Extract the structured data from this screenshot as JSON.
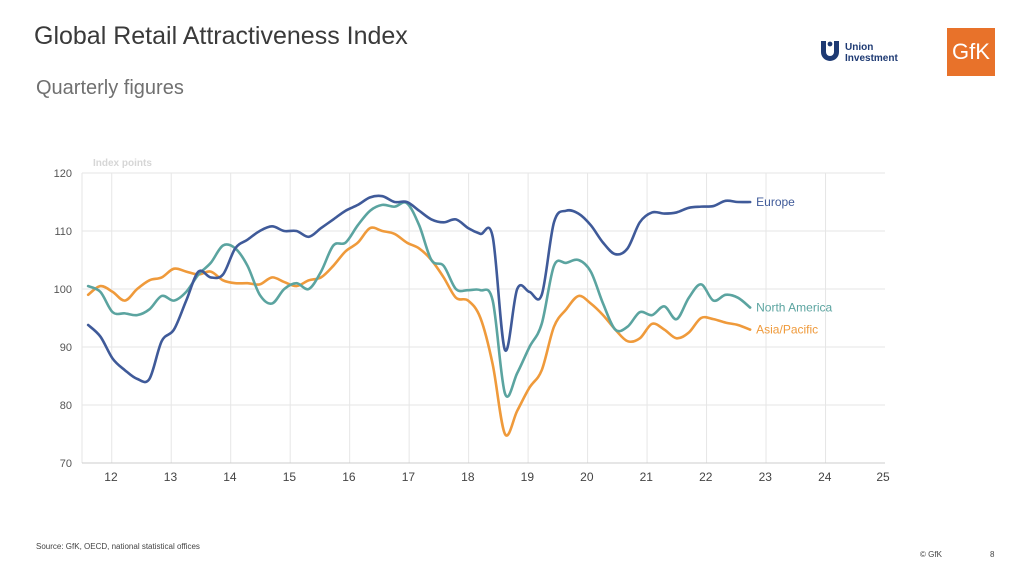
{
  "header": {
    "title": "Global Retail Attractiveness Index",
    "subtitle": "Quarterly figures"
  },
  "logos": {
    "union_investment_line1": "Union",
    "union_investment_line2": "Investment",
    "gfk": "GfK"
  },
  "footer": {
    "source": "Source: GfK, OECD, national statistical offices",
    "copyright": "© GfK",
    "page": "8"
  },
  "chart_data": {
    "type": "line",
    "title": "Global Retail Attractiveness Index",
    "subtitle": "Quarterly figures",
    "ylabel": "Index points",
    "xlabel": "",
    "ylim": [
      70,
      120
    ],
    "yticks": [
      70,
      80,
      90,
      100,
      110,
      120
    ],
    "xlim": [
      11.5,
      24.6
    ],
    "xticks": [
      "12",
      "13",
      "14",
      "15",
      "16",
      "17",
      "18",
      "19",
      "20",
      "21",
      "22",
      "23",
      "24",
      "25"
    ],
    "grid": true,
    "legend": "inline-right",
    "colors": {
      "Europe": "#3f5a99",
      "North America": "#5ba4a0",
      "Asia/Pacific": "#ef9a3b"
    },
    "series": [
      {
        "name": "Europe",
        "points": [
          [
            11.6,
            93.8
          ],
          [
            11.8,
            91.8
          ],
          [
            12.0,
            88.0
          ],
          [
            12.2,
            86.0
          ],
          [
            12.4,
            84.5
          ],
          [
            12.6,
            84.5
          ],
          [
            12.8,
            91.0
          ],
          [
            13.0,
            93.0
          ],
          [
            13.2,
            98.0
          ],
          [
            13.4,
            103.0
          ],
          [
            13.6,
            102.0
          ],
          [
            13.8,
            102.5
          ],
          [
            14.0,
            107.0
          ],
          [
            14.2,
            108.5
          ],
          [
            14.4,
            110.0
          ],
          [
            14.6,
            110.8
          ],
          [
            14.8,
            110.0
          ],
          [
            15.0,
            110.0
          ],
          [
            15.2,
            109.0
          ],
          [
            15.4,
            110.5
          ],
          [
            15.6,
            112.0
          ],
          [
            15.8,
            113.5
          ],
          [
            16.0,
            114.5
          ],
          [
            16.2,
            115.8
          ],
          [
            16.4,
            116.0
          ],
          [
            16.6,
            115.0
          ],
          [
            16.8,
            115.0
          ],
          [
            17.0,
            113.5
          ],
          [
            17.2,
            112.0
          ],
          [
            17.4,
            111.5
          ],
          [
            17.6,
            112.0
          ],
          [
            17.8,
            110.5
          ],
          [
            18.0,
            109.5
          ],
          [
            18.2,
            109.0
          ],
          [
            18.4,
            89.5
          ],
          [
            18.6,
            100.0
          ],
          [
            18.8,
            99.5
          ],
          [
            19.0,
            99.0
          ],
          [
            19.2,
            111.5
          ],
          [
            19.4,
            113.5
          ],
          [
            19.6,
            113.0
          ],
          [
            19.8,
            111.0
          ],
          [
            20.0,
            108.0
          ],
          [
            20.2,
            106.0
          ],
          [
            20.4,
            107.0
          ],
          [
            20.6,
            111.5
          ],
          [
            20.8,
            113.2
          ],
          [
            21.0,
            113.0
          ],
          [
            21.2,
            113.2
          ],
          [
            21.4,
            114.0
          ],
          [
            21.6,
            114.2
          ],
          [
            21.8,
            114.3
          ],
          [
            22.0,
            115.2
          ],
          [
            22.2,
            115.0
          ],
          [
            22.4,
            115.0
          ]
        ]
      },
      {
        "name": "North America",
        "points": [
          [
            11.6,
            100.5
          ],
          [
            11.8,
            99.5
          ],
          [
            12.0,
            96.0
          ],
          [
            12.2,
            95.8
          ],
          [
            12.4,
            95.5
          ],
          [
            12.6,
            96.5
          ],
          [
            12.8,
            98.8
          ],
          [
            13.0,
            98.0
          ],
          [
            13.2,
            99.5
          ],
          [
            13.4,
            102.5
          ],
          [
            13.6,
            104.5
          ],
          [
            13.8,
            107.5
          ],
          [
            14.0,
            107.0
          ],
          [
            14.2,
            104.0
          ],
          [
            14.4,
            99.0
          ],
          [
            14.6,
            97.5
          ],
          [
            14.8,
            100.0
          ],
          [
            15.0,
            101.0
          ],
          [
            15.2,
            100.0
          ],
          [
            15.4,
            103.0
          ],
          [
            15.6,
            107.5
          ],
          [
            15.8,
            108.0
          ],
          [
            16.0,
            111.0
          ],
          [
            16.2,
            113.5
          ],
          [
            16.4,
            114.5
          ],
          [
            16.6,
            114.2
          ],
          [
            16.8,
            114.8
          ],
          [
            17.0,
            111.0
          ],
          [
            17.2,
            105.0
          ],
          [
            17.4,
            104.0
          ],
          [
            17.6,
            100.0
          ],
          [
            17.8,
            99.8
          ],
          [
            18.0,
            99.8
          ],
          [
            18.2,
            98.0
          ],
          [
            18.4,
            82.0
          ],
          [
            18.6,
            85.5
          ],
          [
            18.8,
            90.0
          ],
          [
            19.0,
            94.0
          ],
          [
            19.2,
            104.0
          ],
          [
            19.4,
            104.5
          ],
          [
            19.6,
            105.0
          ],
          [
            19.8,
            103.0
          ],
          [
            20.0,
            97.5
          ],
          [
            20.2,
            93.0
          ],
          [
            20.4,
            93.5
          ],
          [
            20.6,
            96.0
          ],
          [
            20.8,
            95.5
          ],
          [
            21.0,
            97.0
          ],
          [
            21.2,
            94.8
          ],
          [
            21.4,
            98.5
          ],
          [
            21.6,
            100.8
          ],
          [
            21.8,
            98.0
          ],
          [
            22.0,
            99.0
          ],
          [
            22.2,
            98.5
          ],
          [
            22.4,
            96.8
          ]
        ]
      },
      {
        "name": "Asia/Pacific",
        "points": [
          [
            11.6,
            99.0
          ],
          [
            11.8,
            100.5
          ],
          [
            12.0,
            99.5
          ],
          [
            12.2,
            98.0
          ],
          [
            12.4,
            100.0
          ],
          [
            12.6,
            101.5
          ],
          [
            12.8,
            102.0
          ],
          [
            13.0,
            103.5
          ],
          [
            13.2,
            103.0
          ],
          [
            13.4,
            102.5
          ],
          [
            13.6,
            103.0
          ],
          [
            13.8,
            101.5
          ],
          [
            14.0,
            101.0
          ],
          [
            14.2,
            101.0
          ],
          [
            14.4,
            100.8
          ],
          [
            14.6,
            102.0
          ],
          [
            14.8,
            101.2
          ],
          [
            15.0,
            100.5
          ],
          [
            15.2,
            101.5
          ],
          [
            15.4,
            102.0
          ],
          [
            15.6,
            104.0
          ],
          [
            15.8,
            106.5
          ],
          [
            16.0,
            108.0
          ],
          [
            16.2,
            110.5
          ],
          [
            16.4,
            110.0
          ],
          [
            16.6,
            109.5
          ],
          [
            16.8,
            108.0
          ],
          [
            17.0,
            107.0
          ],
          [
            17.2,
            105.0
          ],
          [
            17.4,
            102.0
          ],
          [
            17.6,
            98.5
          ],
          [
            17.8,
            98.0
          ],
          [
            18.0,
            95.0
          ],
          [
            18.2,
            87.0
          ],
          [
            18.4,
            75.0
          ],
          [
            18.6,
            79.0
          ],
          [
            18.8,
            83.0
          ],
          [
            19.0,
            86.0
          ],
          [
            19.2,
            93.5
          ],
          [
            19.4,
            96.5
          ],
          [
            19.6,
            98.8
          ],
          [
            19.8,
            97.5
          ],
          [
            20.0,
            95.5
          ],
          [
            20.2,
            93.0
          ],
          [
            20.4,
            91.0
          ],
          [
            20.6,
            91.5
          ],
          [
            20.8,
            94.0
          ],
          [
            21.0,
            93.0
          ],
          [
            21.2,
            91.5
          ],
          [
            21.4,
            92.5
          ],
          [
            21.6,
            95.0
          ],
          [
            21.8,
            94.8
          ],
          [
            22.0,
            94.2
          ],
          [
            22.2,
            93.8
          ],
          [
            22.4,
            93.0
          ]
        ]
      }
    ]
  }
}
